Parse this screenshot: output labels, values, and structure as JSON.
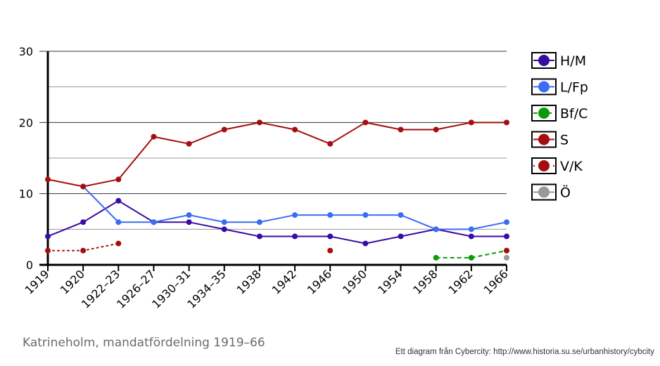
{
  "chart_data": {
    "type": "line",
    "title": "Katrineholm, mandatfördelning 1919–66",
    "credit": "Ett diagram från Cybercity: http://www.historia.su.se/urbanhistory/cybcity",
    "categories": [
      "1919",
      "1920",
      "1922–23",
      "1926–27",
      "1930–31",
      "1934–35",
      "1938",
      "1942",
      "1946",
      "1950",
      "1954",
      "1958",
      "1962",
      "1966"
    ],
    "y_ticks": [
      "0",
      "10",
      "20",
      "30"
    ],
    "ylim": [
      0,
      30
    ],
    "grid": true,
    "legend_position": "right",
    "series": [
      {
        "name": "H/M",
        "color": "#3a0ca3",
        "style": "solid",
        "values": [
          4,
          6,
          9,
          6,
          6,
          5,
          4,
          4,
          4,
          3,
          4,
          5,
          4,
          4
        ]
      },
      {
        "name": "L/Fp",
        "color": "#3a6cf4",
        "style": "solid",
        "values": [
          null,
          11,
          6,
          6,
          7,
          6,
          6,
          7,
          7,
          7,
          7,
          5,
          5,
          6
        ]
      },
      {
        "name": "Bf/C",
        "color": "#0a9a0a",
        "style": "dashed",
        "values": [
          null,
          null,
          null,
          null,
          null,
          null,
          null,
          null,
          null,
          null,
          null,
          1,
          1,
          2
        ]
      },
      {
        "name": "S",
        "color": "#a50e0e",
        "style": "solid",
        "values": [
          12,
          11,
          12,
          18,
          17,
          19,
          20,
          19,
          17,
          20,
          19,
          19,
          20,
          20
        ]
      },
      {
        "name": "V/K",
        "color": "#a50e0e",
        "style": "dotted",
        "values": [
          2,
          2,
          3,
          null,
          null,
          null,
          null,
          null,
          2,
          null,
          null,
          null,
          null,
          2
        ]
      },
      {
        "name": "Ö",
        "color": "#999999",
        "style": "solid",
        "values": [
          null,
          null,
          null,
          null,
          null,
          null,
          null,
          null,
          null,
          null,
          null,
          null,
          null,
          1
        ]
      }
    ]
  }
}
